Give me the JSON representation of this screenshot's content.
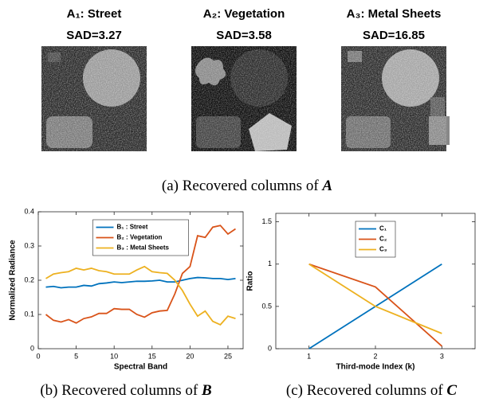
{
  "images": [
    {
      "title": "A₁: Street",
      "sad": "SAD=3.27"
    },
    {
      "title": "A₂: Vegetation",
      "sad": "SAD=3.58"
    },
    {
      "title": "A₃: Metal Sheets",
      "sad": "SAD=16.85"
    }
  ],
  "caption_a": {
    "text": "(a) Recovered columns of",
    "symbol": "A"
  },
  "caption_b": {
    "text": "(b) Recovered columns of",
    "symbol": "B"
  },
  "caption_c": {
    "text": "(c) Recovered columns of",
    "symbol": "C"
  },
  "chart_data": [
    {
      "type": "line",
      "xlabel": "Spectral Band",
      "ylabel": "Normalized Radiance",
      "x": [
        1,
        2,
        3,
        4,
        5,
        6,
        7,
        8,
        9,
        10,
        11,
        12,
        13,
        14,
        15,
        16,
        17,
        18,
        19,
        20,
        21,
        22,
        23,
        24,
        25,
        26
      ],
      "xlim": [
        0,
        27
      ],
      "xticks": [
        0,
        5,
        10,
        15,
        20,
        25
      ],
      "ylim": [
        0,
        0.4
      ],
      "yticks": [
        0,
        0.1,
        0.2,
        0.3,
        0.4
      ],
      "legend": "upper center",
      "series": [
        {
          "name": "B₁ : Street",
          "color": "#0072bd",
          "values": [
            0.18,
            0.182,
            0.178,
            0.18,
            0.18,
            0.185,
            0.183,
            0.19,
            0.192,
            0.195,
            0.193,
            0.195,
            0.197,
            0.197,
            0.198,
            0.2,
            0.195,
            0.195,
            0.2,
            0.205,
            0.208,
            0.207,
            0.205,
            0.205,
            0.202,
            0.205
          ]
        },
        {
          "name": "B₂ : Vegetation",
          "color": "#d95319",
          "values": [
            0.1,
            0.083,
            0.078,
            0.085,
            0.075,
            0.088,
            0.093,
            0.103,
            0.103,
            0.117,
            0.115,
            0.115,
            0.1,
            0.092,
            0.105,
            0.11,
            0.112,
            0.16,
            0.22,
            0.24,
            0.33,
            0.325,
            0.355,
            0.36,
            0.335,
            0.35
          ]
        },
        {
          "name": "B₃ : Metal Sheets",
          "color": "#edb120",
          "values": [
            0.205,
            0.218,
            0.222,
            0.225,
            0.235,
            0.23,
            0.235,
            0.228,
            0.225,
            0.218,
            0.218,
            0.218,
            0.23,
            0.24,
            0.225,
            0.222,
            0.22,
            0.2,
            0.17,
            0.13,
            0.095,
            0.11,
            0.08,
            0.07,
            0.095,
            0.088
          ]
        }
      ]
    },
    {
      "type": "line",
      "xlabel": "Third-mode Index (k)",
      "ylabel": "Ratio",
      "x": [
        1,
        2,
        3
      ],
      "xlim": [
        0.5,
        3.5
      ],
      "xticks": [
        1,
        2,
        3
      ],
      "ylim": [
        0,
        1.6
      ],
      "yticks": [
        0,
        0.5,
        1,
        1.5
      ],
      "legend": "upper center",
      "series": [
        {
          "name": "C₁",
          "color": "#0072bd",
          "values": [
            0,
            0.5,
            1
          ]
        },
        {
          "name": "C₂",
          "color": "#d95319",
          "values": [
            1,
            0.73,
            0.03
          ]
        },
        {
          "name": "C₃",
          "color": "#edb120",
          "values": [
            1,
            0.5,
            0.18
          ]
        }
      ]
    }
  ]
}
